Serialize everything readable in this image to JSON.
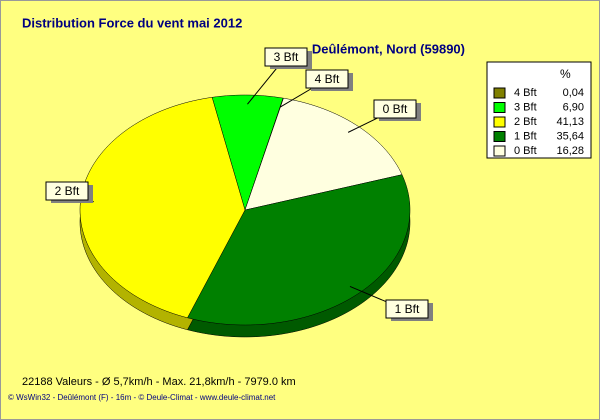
{
  "chart_data": {
    "type": "pie",
    "title": "Distribution Force du vent  mai 2012",
    "subtitle": "Deûlémont, Nord (59890)",
    "legend_header": "%",
    "categories": [
      "4 Bft",
      "3 Bft",
      "2 Bft",
      "1 Bft",
      "0 Bft"
    ],
    "values": [
      0.04,
      6.9,
      41.13,
      35.64,
      16.28
    ],
    "value_labels": [
      "0,04",
      "6,90",
      "41,13",
      "35,64",
      "16,28"
    ],
    "colors": [
      "#808000",
      "#00ff00",
      "#ffff00",
      "#008000",
      "#ffffe0"
    ],
    "legend": "top-right",
    "footer": "22188 Valeurs   -   Ø 5,7km/h  -  Max. 21,8km/h  -   7979.0 km",
    "credit": "© WsWin32  -  Deûlémont (F) - 16m  -  © Deule-Climat - www.deule-climat.net"
  }
}
